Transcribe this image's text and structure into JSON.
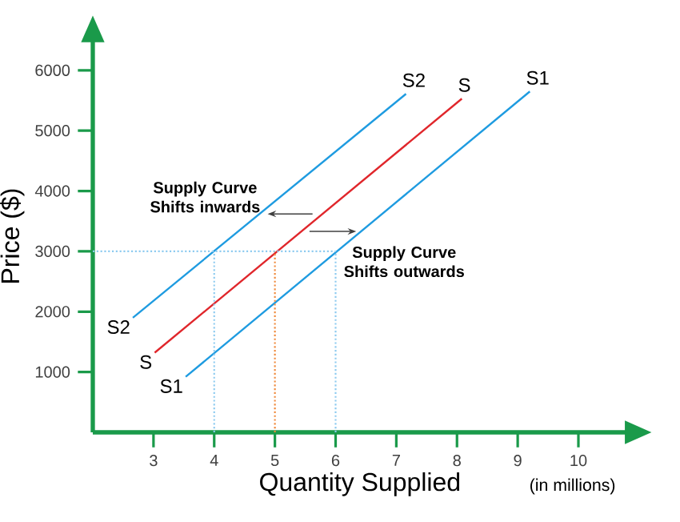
{
  "chart_data": {
    "type": "line",
    "xlabel": "Quantity Supplied",
    "ylabel": "Price ($)",
    "xlim": [
      2,
      10.8
    ],
    "ylim": [
      0,
      6500
    ],
    "xticks": [
      3,
      4,
      5,
      6,
      7,
      8,
      9,
      10
    ],
    "yticks": [
      1000,
      2000,
      3000,
      4000,
      5000,
      6000
    ],
    "marker": "none",
    "line_style": "solid",
    "series": [
      {
        "name": "S2",
        "color": "#1e9be0",
        "x": [
          2.66,
          7.16
        ],
        "values": [
          1900,
          5610
        ]
      },
      {
        "name": "S",
        "color": "#e0262b",
        "x": [
          3.02,
          8.08
        ],
        "values": [
          1320,
          5530
        ]
      },
      {
        "name": "S1",
        "color": "#1e9be0",
        "x": [
          3.53,
          9.2
        ],
        "values": [
          920,
          5650
        ]
      },
      {
        "color": "#8ecbf0",
        "line_style": "dotted",
        "x": [
          2,
          6
        ],
        "values": [
          3000,
          3000
        ]
      },
      {
        "color": "#8ecbf0",
        "line_style": "dotted",
        "x": [
          4,
          4
        ],
        "values": [
          0,
          3000
        ]
      },
      {
        "color": "#f08a3c",
        "line_style": "dotted",
        "x": [
          5,
          5
        ],
        "values": [
          0,
          3000
        ]
      },
      {
        "color": "#8ecbf0",
        "line_style": "dotted",
        "x": [
          6,
          6
        ],
        "values": [
          0,
          3000
        ]
      }
    ],
    "annotations": [
      "Supply Curve Shifts inwards",
      "Supply Curve Shifts outwards",
      "(in millions)"
    ]
  }
}
